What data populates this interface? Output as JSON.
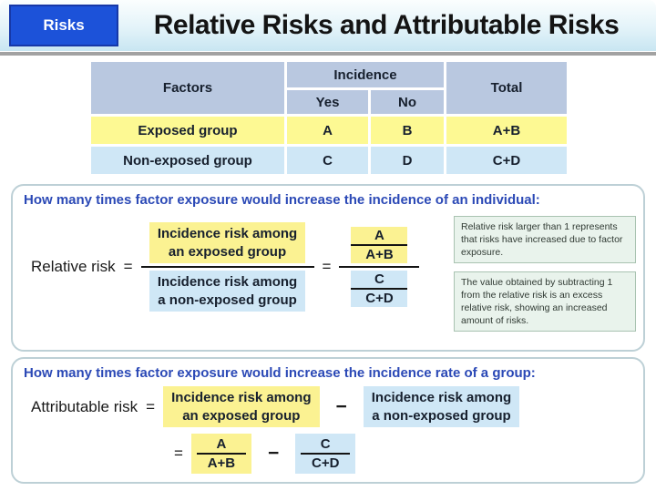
{
  "slide": {
    "badge": "Risks",
    "title": "Relative Risks and Attributable Risks"
  },
  "table": {
    "headers": {
      "factors": "Factors",
      "incidence": "Incidence",
      "yes": "Yes",
      "no": "No",
      "total": "Total"
    },
    "rows": [
      {
        "label": "Exposed group",
        "yes": "A",
        "no": "B",
        "total": "A+B"
      },
      {
        "label": "Non-exposed group",
        "yes": "C",
        "no": "D",
        "total": "C+D"
      }
    ]
  },
  "relative": {
    "heading": "How many times factor exposure would increase the incidence of an individual:",
    "label": "Relative risk",
    "equals": "=",
    "numerator": {
      "line1": "Incidence risk among",
      "line2": "an exposed group"
    },
    "denominator": {
      "line1": "Incidence risk among",
      "line2": "a non-exposed group"
    },
    "frac_top": {
      "num": "A",
      "den": "A+B"
    },
    "frac_bottom": {
      "num": "C",
      "den": "C+D"
    },
    "notes": [
      "Relative risk larger than 1 represents that risks have increased due to factor exposure.",
      "The value obtained by subtracting 1 from the relative risk is an excess relative risk, showing an increased amount of risks."
    ]
  },
  "attributable": {
    "heading": "How many times factor exposure would increase the incidence rate of a group:",
    "label": "Attributable risk",
    "equals": "=",
    "minus": "−",
    "minuend": {
      "line1": "Incidence risk among",
      "line2": "an exposed group"
    },
    "subtrahend": {
      "line1": "Incidence risk among",
      "line2": "a non-exposed group"
    },
    "frac_left": {
      "num": "A",
      "den": "A+B"
    },
    "frac_right": {
      "num": "C",
      "den": "C+D"
    }
  },
  "colors": {
    "badge_blue": "#1c52d9",
    "heading_blue": "#2b49b6",
    "table_header_bg": "#b9c8e0",
    "highlight_yellow": "#fbf292",
    "highlight_blue": "#cfe7f6",
    "note_bg": "#e9f3ec",
    "note_border": "#a9c3b1",
    "panel_border": "#bdd0d6"
  }
}
